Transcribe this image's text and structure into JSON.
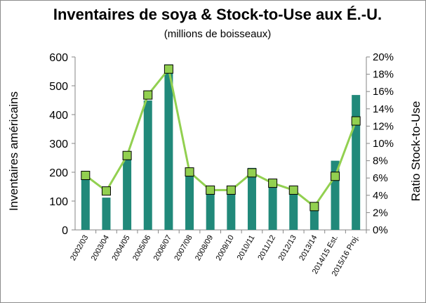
{
  "chart_data": {
    "type": "bar",
    "title": "Inventaires de soya & Stock-to-Use aux É.-U.",
    "subtitle": "(millions de boisseaux)",
    "ylabel": "Inventaires américains",
    "y2label": "Ratio Stock-to-Use",
    "categories": [
      "2002/03",
      "2003/04",
      "2004/05",
      "2005/06",
      "2006/07",
      "2007/08",
      "2008/09",
      "2009/10",
      "2010/11",
      "2011/12",
      "2012/13",
      "2013/14",
      "2014/15 Est.",
      "2015/16 Proj."
    ],
    "series": [
      {
        "axis": "left",
        "chart": "bar",
        "values": [
          178,
          112,
          256,
          449,
          574,
          205,
          138,
          151,
          215,
          169,
          141,
          92,
          240,
          468
        ]
      },
      {
        "axis": "right",
        "chart": "line",
        "values": [
          6.3,
          4.5,
          8.6,
          15.6,
          18.6,
          6.7,
          4.6,
          4.6,
          6.6,
          5.4,
          4.6,
          2.7,
          6.2,
          12.6
        ]
      }
    ],
    "ylim": [
      0,
      600
    ],
    "yticks": [
      0,
      100,
      200,
      300,
      400,
      500,
      600
    ],
    "y2lim": [
      0,
      20
    ],
    "y2ticks": [
      "0%",
      "2%",
      "4%",
      "6%",
      "8%",
      "10%",
      "12%",
      "14%",
      "16%",
      "18%",
      "20%"
    ],
    "grid": false,
    "legend": "none",
    "colors": {
      "bar": "#21897a",
      "line": "#92d050",
      "marker_fill": "#92d050",
      "marker_edge": "#000000"
    }
  }
}
